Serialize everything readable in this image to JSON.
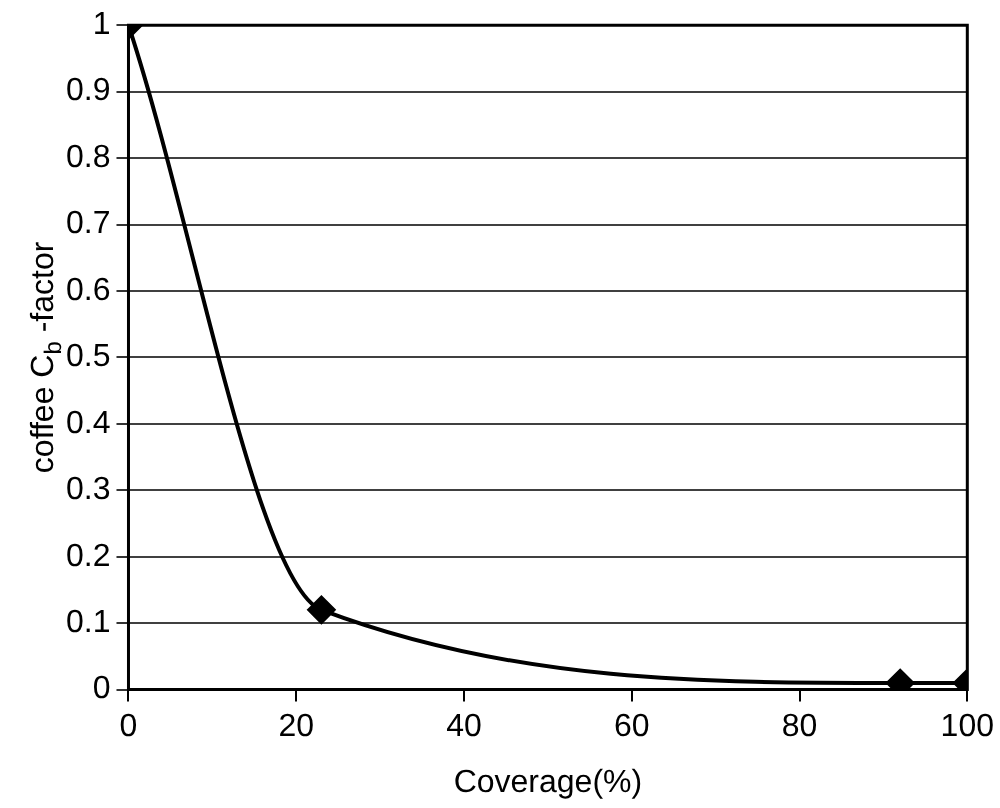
{
  "chart_data": {
    "type": "line",
    "xlabel": "Coverage(%)",
    "ylabel": "coffee C$_{b}$ -factor",
    "x": [
      0,
      23,
      92,
      100
    ],
    "series": [
      {
        "color": "#000000",
        "values": [
          1,
          0.12,
          0.01,
          0.01
        ]
      }
    ],
    "xlim": [
      0,
      100
    ],
    "xticks": [
      0,
      20,
      40,
      60,
      80,
      100
    ],
    "ylim": [
      0,
      1
    ],
    "yticks": [
      0,
      0.1,
      0.2,
      0.3,
      0.4,
      0.5,
      0.6,
      0.7,
      0.8,
      0.9,
      1
    ],
    "grid": "y",
    "legend": false,
    "marker": "diamond",
    "line_style": "solid"
  }
}
